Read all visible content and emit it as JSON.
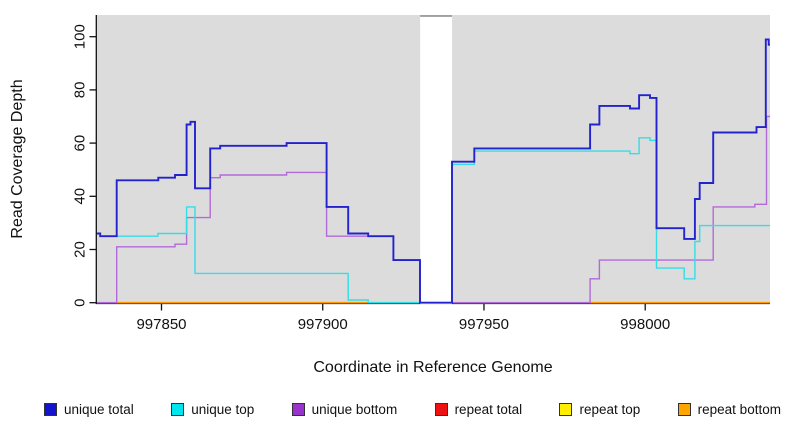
{
  "chart_data": {
    "type": "line",
    "subtype": "step-coverage",
    "title": "",
    "xlabel": "Coordinate in Reference Genome",
    "ylabel": "Read Coverage Depth",
    "x_domain": [
      997830,
      998038.7
    ],
    "y_domain": [
      0,
      100
    ],
    "x_ticks": [
      997850,
      997900,
      997950,
      998000
    ],
    "y_ticks": [
      0,
      20,
      40,
      60,
      80,
      100
    ],
    "panel_color": "#dcdcdc",
    "axis_color": "#111111",
    "grid": "off",
    "legend_position": "bottom",
    "gap": {
      "from": 997930.2,
      "to": 997940.1
    },
    "series": [
      {
        "name": "repeat top",
        "color": "#ffee00",
        "width": 1.3,
        "points": [
          [
            997830,
            0
          ]
        ]
      },
      {
        "name": "repeat total",
        "color": "#ee1111",
        "width": 1.3,
        "points": [
          [
            997830,
            0
          ]
        ]
      },
      {
        "name": "repeat bottom",
        "color": "#ff9900",
        "width": 1.6,
        "points": [
          [
            997830,
            0
          ]
        ]
      },
      {
        "name": "zero-line-overlap-segment",
        "color": "#d4607e",
        "width": 1.4,
        "points": [
          [
            997940.1,
            0
          ]
        ],
        "end": 997982.9
      },
      {
        "name": "unique bottom",
        "color": "#b36ad9",
        "width": 1.4,
        "points": [
          [
            997830,
            0
          ],
          [
            997836.1,
            21
          ],
          [
            997854.2,
            22
          ],
          [
            997857.8,
            32
          ],
          [
            997865.1,
            47
          ],
          [
            997868.2,
            48
          ],
          [
            997888.8,
            49
          ],
          [
            997901.2,
            25
          ],
          [
            997921.9,
            16
          ],
          [
            997930.15,
            0
          ],
          [
            997982.9,
            9
          ],
          [
            997985.8,
            16
          ],
          [
            998021.1,
            36
          ],
          [
            998034,
            37
          ],
          [
            998037.6,
            70
          ]
        ]
      },
      {
        "name": "unique top",
        "color": "#35dde6",
        "width": 1.4,
        "points": [
          [
            997830,
            26
          ],
          [
            997831,
            25
          ],
          [
            997848.9,
            26
          ],
          [
            997857.8,
            36
          ],
          [
            997860.4,
            11
          ],
          [
            997907.9,
            1
          ],
          [
            997914.1,
            0
          ],
          [
            997940.1,
            52
          ],
          [
            997947,
            57
          ],
          [
            997995.3,
            56
          ],
          [
            997998.1,
            62
          ],
          [
            998001.5,
            61
          ],
          [
            998003.5,
            13
          ],
          [
            998012.1,
            9
          ],
          [
            998015.4,
            23
          ],
          [
            998016.9,
            29
          ]
        ]
      },
      {
        "name": "unique total",
        "color": "#2323cd",
        "width": 1.9,
        "points": [
          [
            997830,
            26
          ],
          [
            997831,
            25
          ],
          [
            997836.1,
            46
          ],
          [
            997849,
            47
          ],
          [
            997854.2,
            48
          ],
          [
            997857.8,
            67
          ],
          [
            997859,
            68
          ],
          [
            997860.4,
            43
          ],
          [
            997865.1,
            58
          ],
          [
            997868.2,
            59
          ],
          [
            997888.8,
            60
          ],
          [
            997901.2,
            36
          ],
          [
            997907.9,
            26
          ],
          [
            997914.1,
            25
          ],
          [
            997921.9,
            16
          ],
          [
            997930.15,
            0
          ],
          [
            997940.1,
            53
          ],
          [
            997947,
            58
          ],
          [
            997982.9,
            67
          ],
          [
            997985.8,
            74
          ],
          [
            997995.3,
            73
          ],
          [
            997998.1,
            78
          ],
          [
            998001.5,
            77
          ],
          [
            998003.5,
            28
          ],
          [
            998012.1,
            24
          ],
          [
            998015.4,
            39
          ],
          [
            998016.9,
            45
          ],
          [
            998021.1,
            64
          ],
          [
            998034.5,
            66
          ],
          [
            998037.4,
            99
          ],
          [
            998038.3,
            97
          ]
        ]
      }
    ],
    "legend": [
      {
        "label": "unique total",
        "color": "#1414cc"
      },
      {
        "label": "unique top",
        "color": "#00e5ee"
      },
      {
        "label": "unique bottom",
        "color": "#9a32cd"
      },
      {
        "label": "repeat total",
        "color": "#ee1111"
      },
      {
        "label": "repeat top",
        "color": "#ffee00"
      },
      {
        "label": "repeat bottom",
        "color": "#ffa500"
      }
    ]
  }
}
